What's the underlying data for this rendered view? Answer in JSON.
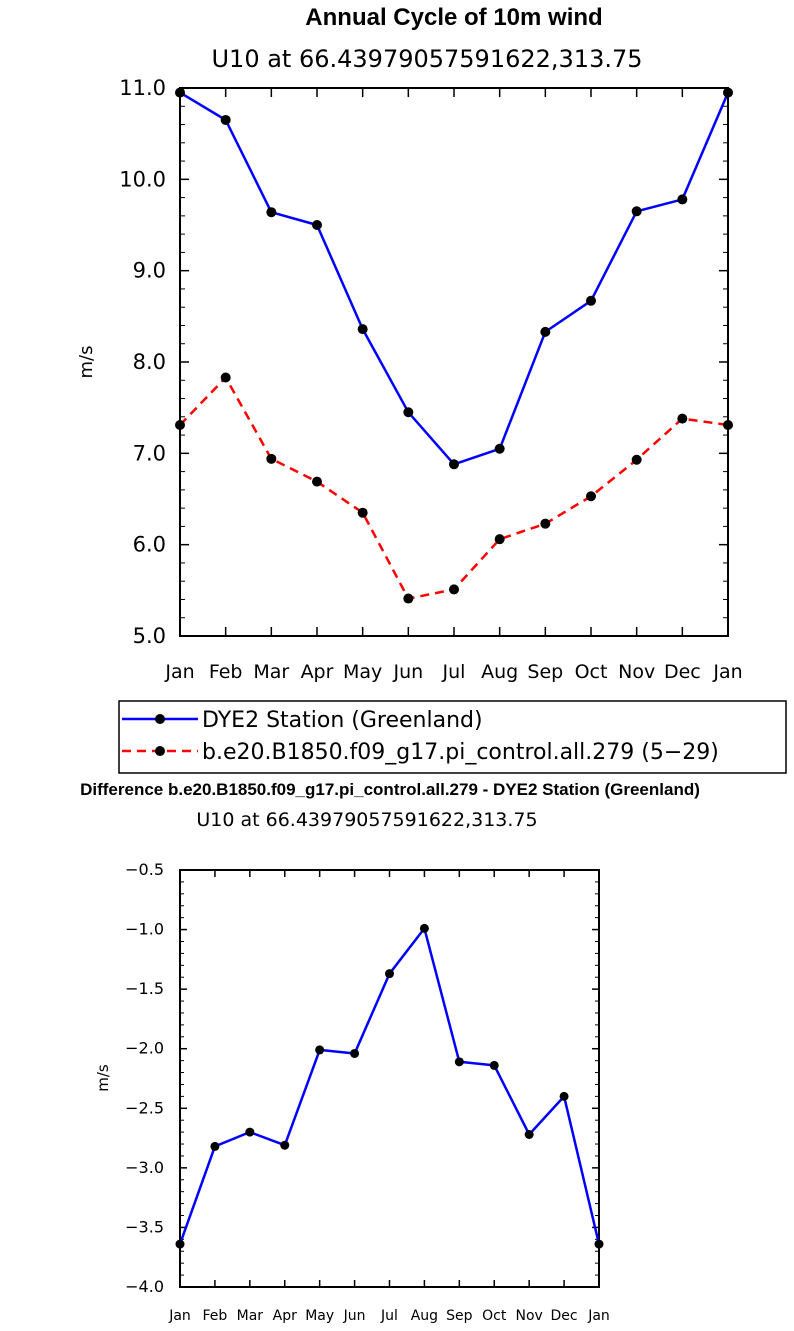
{
  "chart_data": [
    {
      "type": "line",
      "title": "Annual Cycle of 10m wind",
      "subtitle": "U10 at 66.43979057591622,313.75",
      "xlabel": "",
      "ylabel": "m/s",
      "categories": [
        "Jan",
        "Feb",
        "Mar",
        "Apr",
        "May",
        "Jun",
        "Jul",
        "Aug",
        "Sep",
        "Oct",
        "Nov",
        "Dec",
        "Jan"
      ],
      "ylim": [
        5.0,
        11.0
      ],
      "yticks": [
        5.0,
        6.0,
        7.0,
        8.0,
        9.0,
        10.0,
        11.0
      ],
      "ytick_labels": [
        "5.0",
        "6.0",
        "7.0",
        "8.0",
        "9.0",
        "10.0",
        "11.0"
      ],
      "series": [
        {
          "name": "DYE2 Station (Greenland)",
          "color": "#0000ff",
          "dash": "solid",
          "values": [
            10.95,
            10.65,
            9.64,
            9.5,
            8.36,
            7.45,
            6.88,
            7.05,
            8.33,
            8.67,
            9.65,
            9.78,
            10.95
          ]
        },
        {
          "name": "b.e20.B1850.f09_g17.pi_control.all.279 (5−29)",
          "color": "#ff0000",
          "dash": "dashed",
          "values": [
            7.31,
            7.83,
            6.94,
            6.69,
            6.35,
            5.41,
            5.51,
            6.06,
            6.23,
            6.53,
            6.93,
            7.38,
            7.31
          ]
        }
      ],
      "legend_position": "bottom"
    },
    {
      "type": "line",
      "title": "Difference b.e20.B1850.f09_g17.pi_control.all.279 - DYE2 Station (Greenland)",
      "subtitle": "U10 at 66.43979057591622,313.75",
      "xlabel": "",
      "ylabel": "m/s",
      "categories": [
        "Jan",
        "Feb",
        "Mar",
        "Apr",
        "May",
        "Jun",
        "Jul",
        "Aug",
        "Sep",
        "Oct",
        "Nov",
        "Dec",
        "Jan"
      ],
      "ylim": [
        -4.0,
        -0.5
      ],
      "yticks": [
        -4.0,
        -3.5,
        -3.0,
        -2.5,
        -2.0,
        -1.5,
        -1.0,
        -0.5
      ],
      "ytick_labels": [
        "−4.0",
        "−3.5",
        "−3.0",
        "−2.5",
        "−2.0",
        "−1.5",
        "−1.0",
        "−0.5"
      ],
      "series": [
        {
          "name": "Difference",
          "color": "#0000ff",
          "dash": "solid",
          "values": [
            -3.64,
            -2.82,
            -2.7,
            -2.81,
            -2.01,
            -2.04,
            -1.37,
            -0.99,
            -2.11,
            -2.14,
            -2.72,
            -2.4,
            -3.64
          ]
        }
      ]
    }
  ]
}
